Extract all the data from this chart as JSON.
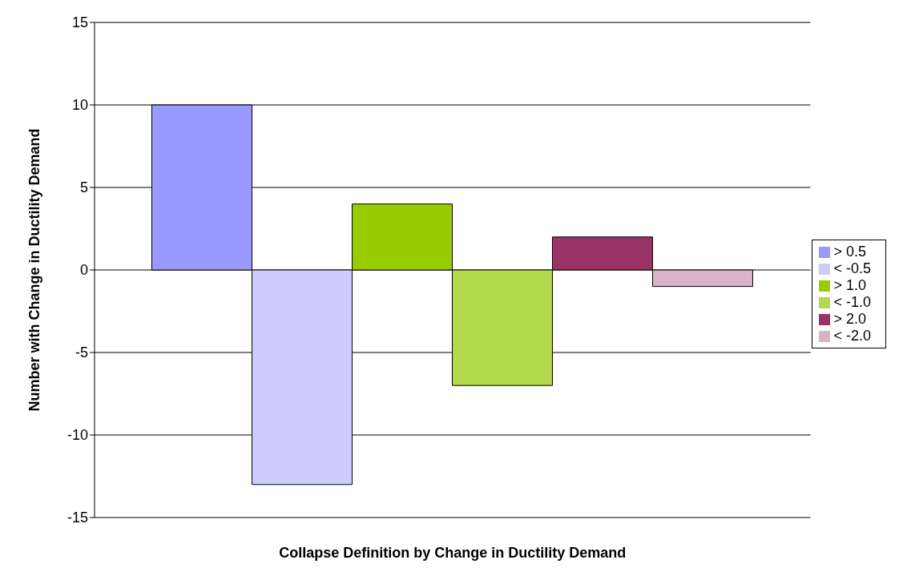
{
  "chart_data": {
    "type": "bar",
    "xlabel": "Collapse Definition by Change in Ductility Demand",
    "ylabel": "Number with Change in Ductility Demand",
    "categories": [
      null
    ],
    "series": [
      {
        "name": "> 0.5",
        "color": "#9999ff",
        "values": [
          10
        ]
      },
      {
        "name": "< -0.5",
        "color": "#ccccff",
        "values": [
          -13
        ]
      },
      {
        "name": "> 1.0",
        "color": "#99cc00",
        "values": [
          4
        ]
      },
      {
        "name": "< -1.0",
        "color": "#b3d94d",
        "values": [
          -7
        ]
      },
      {
        "name": "> 2.0",
        "color": "#993366",
        "values": [
          2
        ]
      },
      {
        "name": "< -2.0",
        "color": "#d9b3c6",
        "values": [
          -1
        ]
      }
    ],
    "ylim": [
      -15,
      15
    ],
    "yticks": [
      -15,
      -10,
      -5,
      0,
      5,
      10,
      15
    ],
    "grid": "y",
    "legend": "right"
  }
}
